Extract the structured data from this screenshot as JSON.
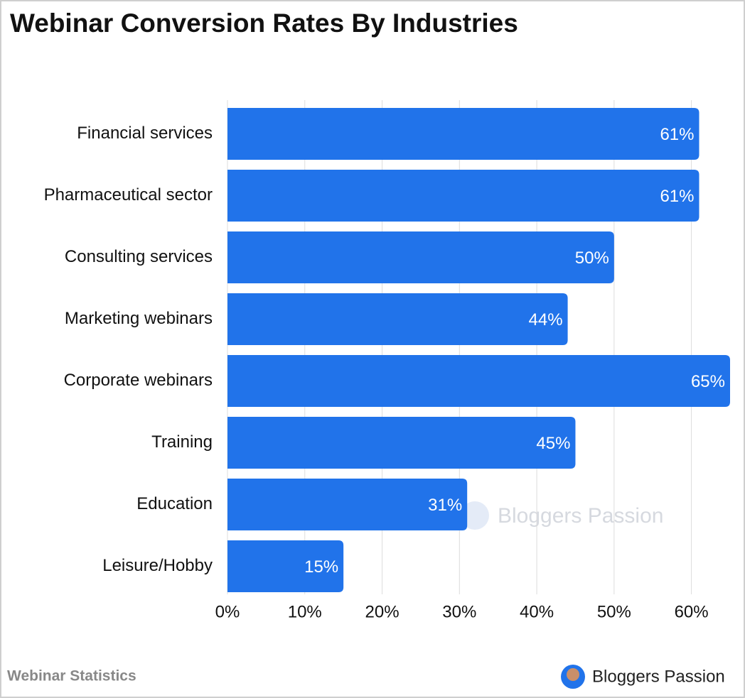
{
  "chart_data": {
    "type": "barh",
    "title": "Webinar Conversion Rates By Industries",
    "categories": [
      "Financial services",
      "Pharmaceutical sector",
      "Consulting services",
      "Marketing webinars",
      "Corporate webinars",
      "Training",
      "Education",
      "Leisure/Hobby"
    ],
    "values": [
      61,
      61,
      50,
      44,
      65,
      45,
      31,
      15
    ],
    "value_labels": [
      "61%",
      "61%",
      "50%",
      "44%",
      "65%",
      "45%",
      "31%",
      "15%"
    ],
    "color": "#2173ea",
    "xlim": [
      0,
      65
    ],
    "xticks": [
      {
        "value": 0,
        "label": "0%"
      },
      {
        "value": 10,
        "label": "10%"
      },
      {
        "value": 20,
        "label": "20%"
      },
      {
        "value": 30,
        "label": "30%"
      },
      {
        "value": 40,
        "label": "40%"
      },
      {
        "value": 50,
        "label": "50%"
      },
      {
        "value": 60,
        "label": "60%"
      }
    ],
    "grid": true,
    "watermark": "Bloggers Passion",
    "footer_left": "Webinar Statistics",
    "footer_brand": "Bloggers Passion"
  }
}
